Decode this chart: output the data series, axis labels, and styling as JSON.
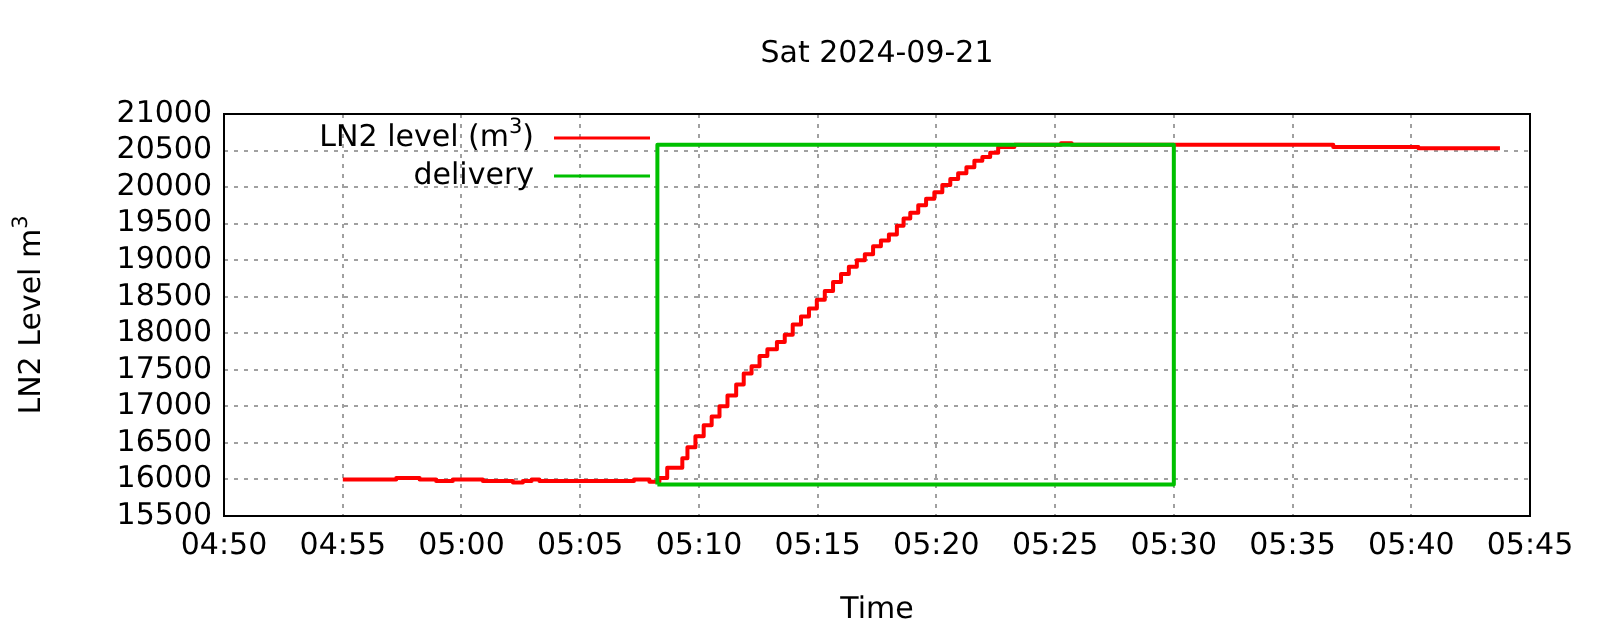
{
  "chart_data": {
    "type": "step",
    "title": "Sat 2024-09-21",
    "xlabel": "Time",
    "ylabel": "LN2 Level m$^{3}$",
    "xlim": [
      4.8333,
      5.75
    ],
    "xticks": [
      {
        "value": 4.8333,
        "label": "04:50"
      },
      {
        "value": 4.9167,
        "label": "04:55"
      },
      {
        "value": 5,
        "label": "05:00"
      },
      {
        "value": 5.0833,
        "label": "05:05"
      },
      {
        "value": 5.1667,
        "label": "05:10"
      },
      {
        "value": 5.25,
        "label": "05:15"
      },
      {
        "value": 5.3333,
        "label": "05:20"
      },
      {
        "value": 5.4167,
        "label": "05:25"
      },
      {
        "value": 5.5,
        "label": "05:30"
      },
      {
        "value": 5.5833,
        "label": "05:35"
      },
      {
        "value": 5.6667,
        "label": "05:40"
      },
      {
        "value": 5.75,
        "label": "05:45"
      }
    ],
    "ylim": [
      15500,
      21000
    ],
    "yticks": [
      15500,
      16000,
      16500,
      17000,
      17500,
      18000,
      18500,
      19000,
      19500,
      20000,
      20500,
      21000
    ],
    "grid": true,
    "legend": "top left",
    "series": [
      {
        "name": "LN2 level (m$^{3}$)",
        "color": "#ff0000",
        "x": [
          4.9167,
          4.9542,
          4.9706,
          4.9822,
          4.9939,
          5.015,
          5.0361,
          5.0431,
          5.0492,
          5.0547,
          5.1211,
          5.1319,
          5.1389,
          5.1444,
          5.155,
          5.1586,
          5.1642,
          5.17,
          5.1756,
          5.1811,
          5.1867,
          5.1928,
          5.1981,
          5.2036,
          5.2092,
          5.2147,
          5.2214,
          5.2269,
          5.2325,
          5.2383,
          5.2439,
          5.2494,
          5.255,
          5.2608,
          5.2664,
          5.2719,
          5.2775,
          5.2831,
          5.2889,
          5.2944,
          5.3,
          5.3056,
          5.3103,
          5.315,
          5.3206,
          5.3261,
          5.3319,
          5.3375,
          5.3431,
          5.3486,
          5.3544,
          5.36,
          5.3656,
          5.3711,
          5.3767,
          5.3881,
          5.4208,
          5.4283,
          5.6119,
          5.6717,
          5.7289
        ],
        "values": [
          16000,
          16020,
          16000,
          15980,
          16000,
          15980,
          15960,
          15980,
          16000,
          15980,
          16000,
          15970,
          16020,
          16160,
          16290,
          16440,
          16590,
          16740,
          16860,
          17000,
          17150,
          17300,
          17450,
          17550,
          17690,
          17780,
          17880,
          17980,
          18120,
          18230,
          18340,
          18460,
          18580,
          18700,
          18810,
          18910,
          19000,
          19080,
          19190,
          19270,
          19350,
          19470,
          19570,
          19650,
          19750,
          19840,
          19930,
          20030,
          20110,
          20190,
          20270,
          20360,
          20410,
          20470,
          20550,
          20580,
          20600,
          20580,
          20550,
          20530,
          20530
        ]
      },
      {
        "name": "delivery",
        "color": "#00c000",
        "type": "line",
        "x": [
          5.1375,
          5.1375,
          5.5,
          5.5
        ],
        "values": [
          15930,
          20580,
          20580,
          15930
        ]
      },
      {
        "color": "#00c000",
        "type": "line",
        "x": [
          5.1375,
          5.5
        ],
        "values": [
          15930,
          15930
        ]
      }
    ]
  }
}
